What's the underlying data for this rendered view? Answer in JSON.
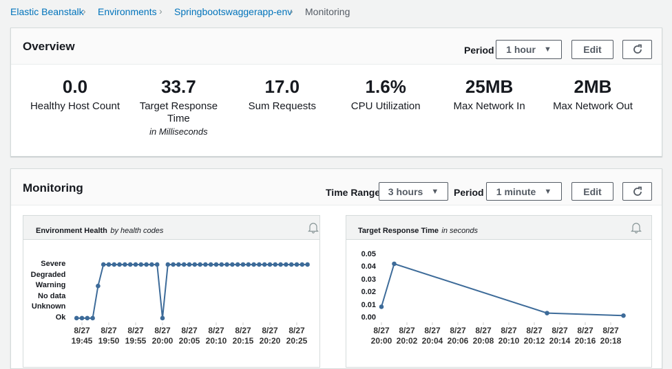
{
  "breadcrumb": [
    "Elastic Beanstalk",
    "Environments",
    "Springbootswaggerapp-env",
    "Monitoring"
  ],
  "overview": {
    "title": "Overview",
    "period_label": "Period",
    "period": "1 hour",
    "edit": "Edit",
    "metrics": [
      {
        "value": "0.0",
        "label": "Healthy Host Count"
      },
      {
        "value": "33.7",
        "label": "Target Response Time",
        "note": "in Milliseconds"
      },
      {
        "value": "17.0",
        "label": "Sum Requests"
      },
      {
        "value": "1.6%",
        "label": "CPU Utilization"
      },
      {
        "value": "25MB",
        "label": "Max Network In"
      },
      {
        "value": "2MB",
        "label": "Max Network Out"
      }
    ]
  },
  "monitoring": {
    "title": "Monitoring",
    "time_range_label": "Time Range",
    "time_range": "3 hours",
    "period_label": "Period",
    "period": "1 minute",
    "edit": "Edit"
  },
  "chart_data": [
    {
      "type": "line",
      "title": "Environment Health",
      "subtitle": "by health codes",
      "color": "#3d6b99",
      "x": [
        "8/27 19:44",
        "8/27 19:45",
        "8/27 19:46",
        "8/27 19:47",
        "8/27 19:48",
        "8/27 19:49",
        "8/27 19:50",
        "8/27 19:51",
        "8/27 19:52",
        "8/27 19:53",
        "8/27 19:54",
        "8/27 19:55",
        "8/27 19:56",
        "8/27 19:57",
        "8/27 19:58",
        "8/27 19:59",
        "8/27 20:00",
        "8/27 20:01",
        "8/27 20:02",
        "8/27 20:03",
        "8/27 20:04",
        "8/27 20:05",
        "8/27 20:06",
        "8/27 20:07",
        "8/27 20:08",
        "8/27 20:09",
        "8/27 20:10",
        "8/27 20:11",
        "8/27 20:12",
        "8/27 20:13",
        "8/27 20:14",
        "8/27 20:15",
        "8/27 20:16",
        "8/27 20:17",
        "8/27 20:18",
        "8/27 20:19",
        "8/27 20:20",
        "8/27 20:21",
        "8/27 20:22",
        "8/27 20:23",
        "8/27 20:24",
        "8/27 20:25",
        "8/27 20:26",
        "8/27 20:27"
      ],
      "values": [
        0,
        0,
        0,
        0,
        3,
        5,
        5,
        5,
        5,
        5,
        5,
        5,
        5,
        5,
        5,
        5,
        0,
        5,
        5,
        5,
        5,
        5,
        5,
        5,
        5,
        5,
        5,
        5,
        5,
        5,
        5,
        5,
        5,
        5,
        5,
        5,
        5,
        5,
        5,
        5,
        5,
        5,
        5,
        5
      ],
      "xlim": [
        "8/27 19:43",
        "8/27 20:28"
      ],
      "xticks": [
        "8/27 19:45",
        "8/27 19:50",
        "8/27 19:55",
        "8/27 20:00",
        "8/27 20:05",
        "8/27 20:10",
        "8/27 20:15",
        "8/27 20:20",
        "8/27 20:25"
      ],
      "ylim": [
        -0.4,
        5.6
      ],
      "yticks": [
        {
          "value": 0,
          "label": "Ok"
        },
        {
          "value": 1,
          "label": "Unknown"
        },
        {
          "value": 2,
          "label": "No data"
        },
        {
          "value": 3,
          "label": "Warning"
        },
        {
          "value": 4,
          "label": "Degraded"
        },
        {
          "value": 5,
          "label": "Severe"
        }
      ]
    },
    {
      "type": "line",
      "title": "Target Response Time",
      "subtitle": "in seconds",
      "color": "#3d6b99",
      "x": [
        "8/27 20:00",
        "8/27 20:01",
        "8/27 20:13",
        "8/27 20:19"
      ],
      "values": [
        0.009,
        0.043,
        0.004,
        0.002
      ],
      "xlim": [
        "8/27 20:00",
        "8/27 20:21"
      ],
      "xticks": [
        "8/27 20:00",
        "8/27 20:02",
        "8/27 20:04",
        "8/27 20:06",
        "8/27 20:08",
        "8/27 20:10",
        "8/27 20:12",
        "8/27 20:14",
        "8/27 20:16",
        "8/27 20:18"
      ],
      "ylim": [
        0,
        0.05
      ],
      "yticks": [
        {
          "value": 0,
          "label": "0.00"
        },
        {
          "value": 0.01,
          "label": "0.01"
        },
        {
          "value": 0.02,
          "label": "0.02"
        },
        {
          "value": 0.03,
          "label": "0.03"
        },
        {
          "value": 0.04,
          "label": "0.04"
        },
        {
          "value": 0.05,
          "label": "0.05"
        }
      ]
    }
  ]
}
